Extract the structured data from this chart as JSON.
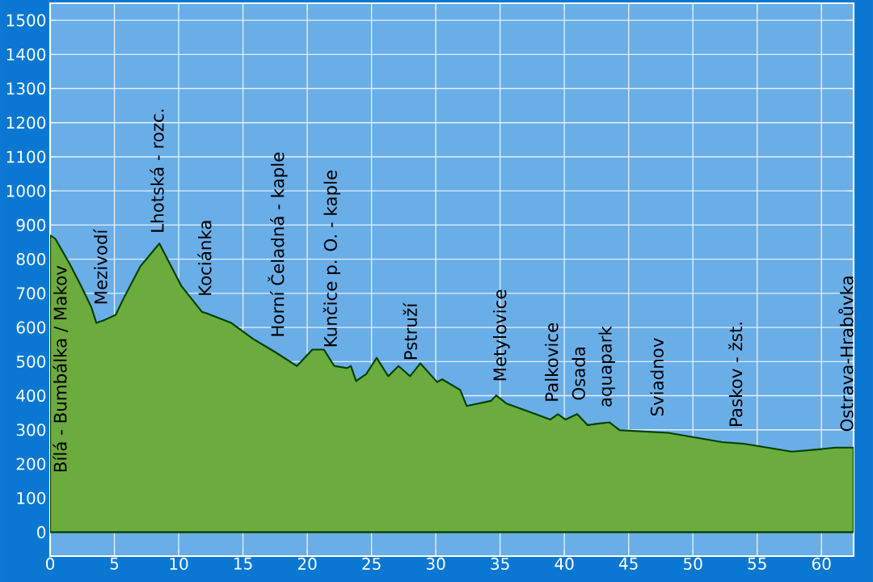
{
  "chart_data": {
    "type": "area",
    "x": [
      0,
      0.4,
      1.5,
      2.4,
      3.2,
      3.6,
      4.3,
      5.1,
      5.7,
      7.0,
      8.5,
      9.1,
      10.2,
      11.8,
      12.2,
      14.1,
      15.8,
      17.5,
      19.2,
      20.4,
      21.3,
      22.1,
      23.1,
      23.4,
      23.8,
      24.6,
      25.4,
      26.3,
      27.1,
      28.0,
      28.8,
      30.1,
      30.5,
      31.9,
      32.4,
      34.3,
      34.7,
      35.5,
      37.2,
      38.9,
      39.5,
      40.1,
      41.0,
      41.8,
      42.6,
      43.5,
      44.3,
      48.1,
      52.3,
      54.0,
      57.7,
      59.8,
      61.1,
      62.5
    ],
    "values": [
      870,
      860,
      788,
      722,
      660,
      613,
      623,
      637,
      684,
      778,
      846,
      802,
      722,
      646,
      641,
      613,
      566,
      528,
      487,
      535,
      535,
      487,
      481,
      487,
      443,
      464,
      511,
      457,
      487,
      457,
      495,
      440,
      448,
      417,
      370,
      385,
      401,
      377,
      354,
      330,
      346,
      330,
      346,
      314,
      318,
      322,
      299,
      291,
      264,
      259,
      236,
      243,
      248,
      248
    ],
    "color": "#6cab3e",
    "xlim": [
      0,
      62.5
    ],
    "ylim": [
      -70,
      1550
    ],
    "xticks": [
      0,
      5,
      10,
      15,
      20,
      25,
      30,
      35,
      40,
      45,
      50,
      55,
      60
    ],
    "yticks": [
      0,
      100,
      200,
      300,
      400,
      500,
      600,
      700,
      800,
      900,
      1000,
      1100,
      1200,
      1300,
      1400,
      1500
    ],
    "grid": true,
    "annotations": [
      {
        "text": "Bílá - Bumbálka / Makov",
        "x": 0.8,
        "y": 840
      },
      {
        "text": "Mezivodí",
        "x": 3.9,
        "y": 620
      },
      {
        "text": "Lhotská - rozc.",
        "x": 8.3,
        "y": 830
      },
      {
        "text": "Kociánka",
        "x": 12.0,
        "y": 645
      },
      {
        "text": "Horní Čeladná - kaple",
        "x": 17.7,
        "y": 525
      },
      {
        "text": "Kunčice p. O. - kaple",
        "x": 21.9,
        "y": 495
      },
      {
        "text": "Pstruží",
        "x": 28.0,
        "y": 457
      },
      {
        "text": "Metylovice",
        "x": 35.1,
        "y": 395
      },
      {
        "text": "Palkovice",
        "x": 39.0,
        "y": 335
      },
      {
        "text": "Osada",
        "x": 41.1,
        "y": 340
      },
      {
        "text": "aquapark",
        "x": 43.3,
        "y": 320
      },
      {
        "text": "Sviadnov",
        "x": 47.2,
        "y": 293
      },
      {
        "text": "Paskov - žst.",
        "x": 53.3,
        "y": 261
      },
      {
        "text": "Ostrava-Hrabůvka",
        "x": 61.9,
        "y": 248
      }
    ]
  }
}
